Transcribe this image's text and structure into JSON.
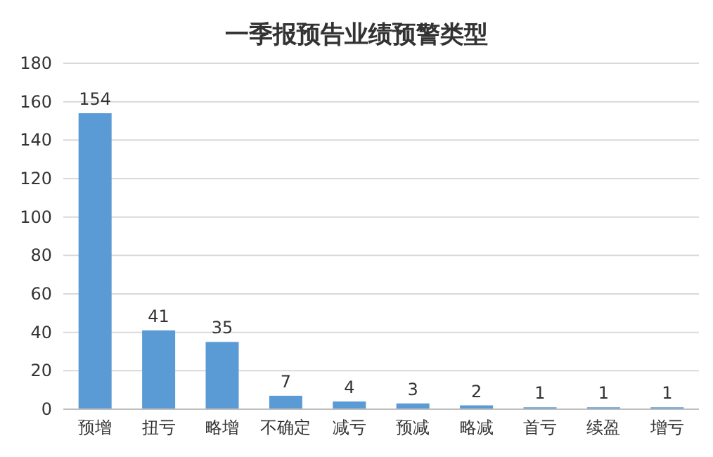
{
  "chart_data": {
    "type": "bar",
    "title": "一季报预告业绩预警类型",
    "categories": [
      "预增",
      "扭亏",
      "略增",
      "不确定",
      "减亏",
      "预减",
      "略减",
      "首亏",
      "续盈",
      "增亏"
    ],
    "values": [
      154,
      41,
      35,
      7,
      4,
      3,
      2,
      1,
      1,
      1
    ],
    "color": "#5b9bd5",
    "ylim": [
      0,
      180
    ],
    "yticks": [
      0,
      20,
      40,
      60,
      80,
      100,
      120,
      140,
      160,
      180
    ],
    "grid": "y",
    "data_labels": true
  }
}
